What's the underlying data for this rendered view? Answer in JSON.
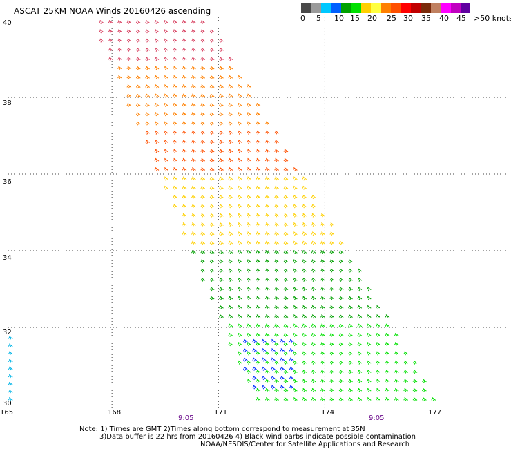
{
  "title": "ASCAT 25KM NOAA Winds 20160426 ascending",
  "legend": {
    "colors": [
      "#4a4a4a",
      "#9a9a9a",
      "#00c8ff",
      "#0060ff",
      "#00a000",
      "#00e000",
      "#ffd000",
      "#ffff40",
      "#ff8000",
      "#ff5000",
      "#ff0000",
      "#c00000",
      "#7a2a0a",
      "#c08060",
      "#ff00ff",
      "#c000c0",
      "#6000a0",
      "#ffffff"
    ],
    "labels": [
      "0",
      "5",
      "10",
      "15",
      "20",
      "25",
      "30",
      "35",
      "40",
      "45",
      ">50 knots"
    ]
  },
  "lat_labels": [
    "40",
    "38",
    "36",
    "34",
    "32",
    "30"
  ],
  "lon_labels": [
    "165",
    "168",
    "171",
    "174",
    "177"
  ],
  "time_labels": [
    "9:05",
    "9:05"
  ],
  "notes": [
    "Note: 1) Times are GMT 2)Times along bottom correspond to measurement at 35N",
    "3)Data buffer is 22 hrs from 20160426 4) Black wind barbs indicate possible contamination",
    "NOAA/NESDIS/Center for Satellite Applications and Research"
  ],
  "wind_color_zones": [
    {
      "lat_min": 38.8,
      "color": "#d84060"
    },
    {
      "lat_min": 37.2,
      "color": "#ff8000"
    },
    {
      "lat_min": 36.0,
      "color": "#ff5000"
    },
    {
      "lat_min": 34.0,
      "color": "#ffd000"
    },
    {
      "lat_min": 32.2,
      "color": "#00a000"
    },
    {
      "lat_min": 30.0,
      "color": "#00e000"
    }
  ]
}
